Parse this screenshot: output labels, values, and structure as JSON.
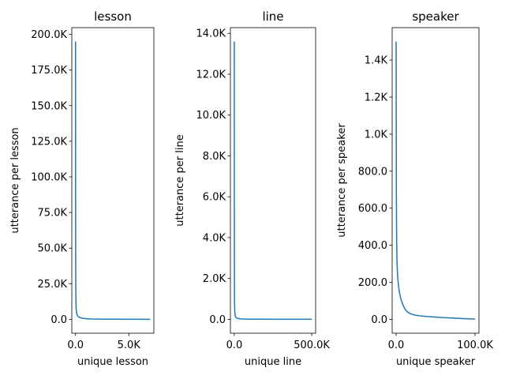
{
  "line_color": "#1f77b4",
  "chart_data": [
    {
      "type": "line",
      "title": "lesson",
      "xlabel": "unique lesson",
      "ylabel": "utterance per lesson",
      "xlim": [
        -350,
        7350
      ],
      "ylim": [
        -9750,
        204750
      ],
      "xticks": [
        {
          "value": 0,
          "label": "0.0"
        },
        {
          "value": 5000,
          "label": "5.0K"
        }
      ],
      "yticks": [
        {
          "value": 0,
          "label": "0.0"
        },
        {
          "value": 25000,
          "label": "25.0K"
        },
        {
          "value": 50000,
          "label": "50.0K"
        },
        {
          "value": 75000,
          "label": "75.0K"
        },
        {
          "value": 100000,
          "label": "100.0K"
        },
        {
          "value": 125000,
          "label": "125.0K"
        },
        {
          "value": 150000,
          "label": "150.0K"
        },
        {
          "value": 175000,
          "label": "175.0K"
        },
        {
          "value": 200000,
          "label": "200.0K"
        }
      ],
      "series": [
        {
          "x": [
            0,
            10,
            25,
            50,
            80,
            120,
            170,
            250,
            350,
            500,
            700,
            1000,
            1500,
            2500,
            4000,
            5500,
            7000
          ],
          "y": [
            195000,
            60000,
            20000,
            9000,
            5500,
            3800,
            2800,
            2000,
            1400,
            1000,
            700,
            450,
            250,
            120,
            60,
            30,
            10
          ]
        }
      ]
    },
    {
      "type": "line",
      "title": "line",
      "xlabel": "unique line",
      "ylabel": "utterance per line",
      "xlim": [
        -25000,
        525000
      ],
      "ylim": [
        -680,
        14280
      ],
      "xticks": [
        {
          "value": 0,
          "label": "0.0"
        },
        {
          "value": 500000,
          "label": "500.0K"
        }
      ],
      "yticks": [
        {
          "value": 0,
          "label": "0.0"
        },
        {
          "value": 2000,
          "label": "2.0K"
        },
        {
          "value": 4000,
          "label": "4.0K"
        },
        {
          "value": 6000,
          "label": "6.0K"
        },
        {
          "value": 8000,
          "label": "8.0K"
        },
        {
          "value": 10000,
          "label": "10.0K"
        },
        {
          "value": 12000,
          "label": "12.0K"
        },
        {
          "value": 14000,
          "label": "14.0K"
        }
      ],
      "series": [
        {
          "x": [
            0,
            500,
            1500,
            3000,
            5000,
            8000,
            12000,
            20000,
            40000,
            100000,
            200000,
            300000,
            400000,
            500000
          ],
          "y": [
            13600,
            3000,
            900,
            400,
            220,
            130,
            80,
            45,
            20,
            8,
            4,
            2,
            1,
            1
          ]
        }
      ]
    },
    {
      "type": "line",
      "title": "speaker",
      "xlabel": "unique speaker",
      "ylabel": "utterance per speaker",
      "xlim": [
        -5000,
        105000
      ],
      "ylim": [
        -75,
        1575
      ],
      "xticks": [
        {
          "value": 0,
          "label": "0.0"
        },
        {
          "value": 100000,
          "label": "100.0K"
        }
      ],
      "yticks": [
        {
          "value": 0,
          "label": "0.0"
        },
        {
          "value": 200,
          "label": "200.0"
        },
        {
          "value": 400,
          "label": "400.0"
        },
        {
          "value": 600,
          "label": "600.0"
        },
        {
          "value": 800,
          "label": "800.0"
        },
        {
          "value": 1000,
          "label": "1.0K"
        },
        {
          "value": 1200,
          "label": "1.2K"
        },
        {
          "value": 1400,
          "label": "1.4K"
        }
      ],
      "series": [
        {
          "x": [
            0,
            300,
            700,
            1200,
            2000,
            3000,
            4500,
            6000,
            8000,
            10000,
            13000,
            16000,
            20000,
            25000,
            30000,
            40000,
            50000,
            60000,
            70000,
            80000,
            90000,
            100000
          ],
          "y": [
            1500,
            700,
            420,
            300,
            230,
            180,
            140,
            110,
            85,
            65,
            45,
            35,
            27,
            22,
            19,
            15,
            12,
            9,
            7,
            5,
            3,
            1
          ]
        }
      ]
    }
  ]
}
